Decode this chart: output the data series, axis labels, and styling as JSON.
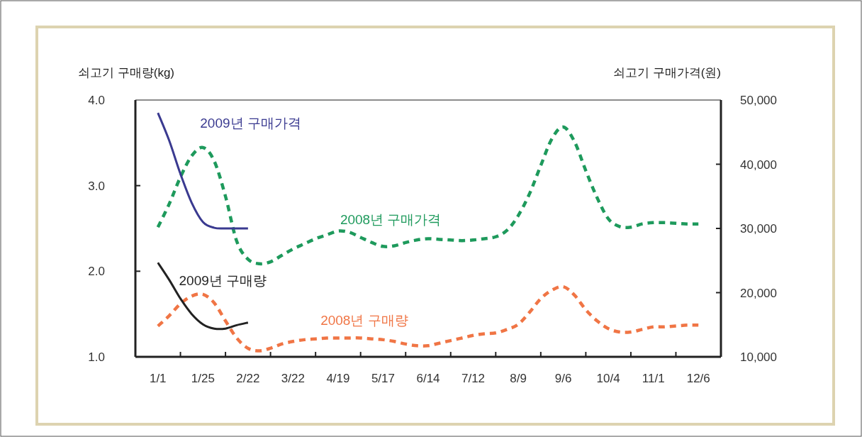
{
  "chart_data": {
    "type": "line",
    "ylabel": "쇠고기 구매량(kg)",
    "y2label": "쇠고기 구매가격(원)",
    "categories": [
      "1/1",
      null,
      null,
      null,
      "1/25",
      null,
      null,
      null,
      "2/22",
      null,
      null,
      null,
      "3/22",
      null,
      null,
      null,
      "4/19",
      null,
      null,
      null,
      "5/17",
      null,
      null,
      null,
      "6/14",
      null,
      null,
      null,
      "7/12",
      null,
      null,
      null,
      "8/9",
      null,
      null,
      null,
      "9/6",
      null,
      null,
      null,
      "10/4",
      null,
      null,
      null,
      "11/1",
      null,
      null,
      null,
      "12/6"
    ],
    "ylim": [
      1.0,
      4.0
    ],
    "yticks": [
      {
        "value": 1,
        "label": "1.0"
      },
      {
        "value": 2,
        "label": "2.0"
      },
      {
        "value": 3,
        "label": "3.0"
      },
      {
        "value": 4,
        "label": "4.0"
      }
    ],
    "y2lim": [
      10000,
      50000
    ],
    "y2ticks": [
      {
        "value": 10000,
        "label": "10,000"
      },
      {
        "value": 20000,
        "label": "20,000"
      },
      {
        "value": 30000,
        "label": "30,000"
      },
      {
        "value": 40000,
        "label": "40,000"
      },
      {
        "value": 50000,
        "label": "50,000"
      }
    ],
    "grid": false,
    "legend": false,
    "series": [
      {
        "name": "2008년 구매가격",
        "color": "#1e9a5c",
        "axis": "y2",
        "line_style": "dashed",
        "values": [
          30200,
          33800,
          38000,
          41300,
          42600,
          40500,
          35000,
          28000,
          25200,
          24500,
          24800,
          25800,
          26800,
          27600,
          28400,
          29000,
          29600,
          29400,
          28600,
          27800,
          27200,
          27300,
          27800,
          28200,
          28400,
          28300,
          28200,
          28100,
          28200,
          28400,
          28700,
          29700,
          32000,
          35400,
          39800,
          44000,
          45800,
          43500,
          39000,
          34800,
          31500,
          30300,
          30200,
          30700,
          30900,
          30900,
          30800,
          30700,
          30700
        ]
      },
      {
        "name": "2008년 구매량",
        "color": "#f07545",
        "line_style": "dashed",
        "values": [
          1.36,
          1.48,
          1.62,
          1.71,
          1.73,
          1.63,
          1.42,
          1.22,
          1.1,
          1.07,
          1.1,
          1.15,
          1.18,
          1.2,
          1.21,
          1.22,
          1.22,
          1.22,
          1.22,
          1.21,
          1.2,
          1.18,
          1.15,
          1.13,
          1.13,
          1.16,
          1.19,
          1.22,
          1.25,
          1.27,
          1.28,
          1.32,
          1.38,
          1.52,
          1.68,
          1.78,
          1.82,
          1.72,
          1.55,
          1.42,
          1.33,
          1.29,
          1.29,
          1.32,
          1.35,
          1.35,
          1.36,
          1.37,
          1.37
        ]
      },
      {
        "name": "2009년 구매가격",
        "color": "#3a3a90",
        "axis": "y2",
        "line_style": "solid",
        "values": [
          48000,
          43700,
          38500,
          34000,
          31000,
          30100,
          30000,
          30000,
          30000,
          null,
          null,
          null,
          null,
          null,
          null,
          null,
          null,
          null,
          null,
          null,
          null,
          null,
          null,
          null,
          null,
          null,
          null,
          null,
          null,
          null,
          null,
          null,
          null,
          null,
          null,
          null,
          null,
          null,
          null,
          null,
          null,
          null,
          null,
          null,
          null,
          null,
          null,
          null,
          null
        ]
      },
      {
        "name": "2009년 구매량",
        "color": "#222222",
        "line_style": "solid",
        "values": [
          2.1,
          1.9,
          1.68,
          1.5,
          1.38,
          1.33,
          1.33,
          1.37,
          1.4,
          null,
          null,
          null,
          null,
          null,
          null,
          null,
          null,
          null,
          null,
          null,
          null,
          null,
          null,
          null,
          null,
          null,
          null,
          null,
          null,
          null,
          null,
          null,
          null,
          null,
          null,
          null,
          null,
          null,
          null,
          null,
          null,
          null,
          null,
          null,
          null,
          null,
          null,
          null,
          null
        ]
      }
    ]
  }
}
